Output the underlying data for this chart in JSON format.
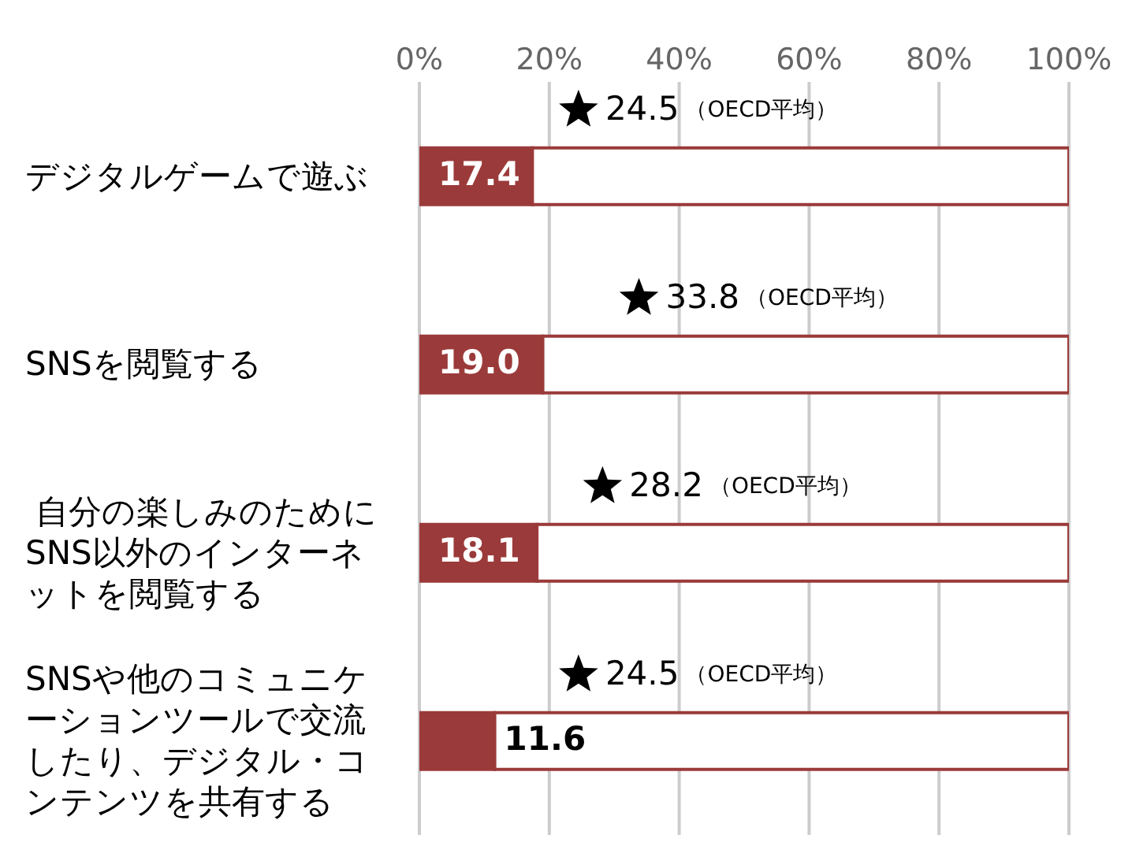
{
  "chart_data": {
    "type": "bar",
    "orientation": "horizontal",
    "stacked": true,
    "categories": [
      "デジタルゲームで遊ぶ",
      "SNSを閲覧する",
      " 自分の楽しみのためにSNS以外のインターネットを閲覧する",
      "SNSや他のコミュニケーションツールで交流したり、デジタル・コンテンツを共有する"
    ],
    "series": [
      {
        "color": "#9b3a3a",
        "values": [
          17.4,
          19.0,
          18.1,
          11.6
        ],
        "value_labels": [
          "17.4",
          "19.0",
          "18.1",
          "11.6"
        ]
      },
      {
        "color": "#ffffff",
        "values": [
          82.6,
          81.0,
          81.9,
          88.4
        ]
      },
      {
        "name": "（OECD平均）",
        "type": "scatter",
        "marker": "star",
        "color": "#000000",
        "values": [
          24.5,
          33.8,
          28.2,
          24.5
        ],
        "value_labels": [
          "24.5",
          "33.8",
          "28.2",
          "24.5"
        ]
      }
    ],
    "xlim": [
      0,
      100
    ],
    "xticks": [
      {
        "value": 0,
        "label": "0%"
      },
      {
        "value": 20,
        "label": "20%"
      },
      {
        "value": 40,
        "label": "40%"
      },
      {
        "value": 60,
        "label": "60%"
      },
      {
        "value": 80,
        "label": "80%"
      },
      {
        "value": 100,
        "label": "100%"
      }
    ],
    "grid": "x",
    "legend": false
  }
}
